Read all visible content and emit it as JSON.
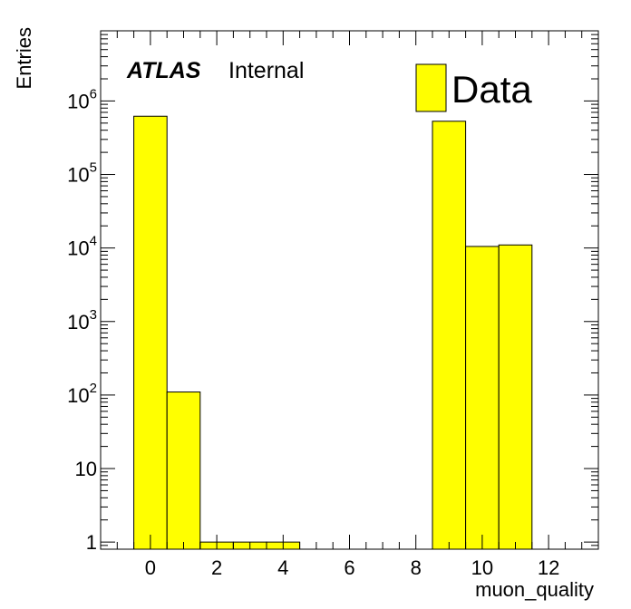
{
  "chart_data": {
    "type": "bar",
    "xlabel": "muon_quality",
    "ylabel": "Entries",
    "x_log": false,
    "y_log": true,
    "xlim": [
      -1.5,
      13.5
    ],
    "ylim": [
      0.8,
      9000000
    ],
    "bin_edges": [
      -0.5,
      0.5,
      1.5,
      2.5,
      3.5,
      4.5,
      5.5,
      6.5,
      7.5,
      8.5,
      9.5,
      10.5,
      11.5
    ],
    "series": [
      {
        "name": "Data",
        "color": "#ffff00",
        "values": [
          620000,
          110,
          1,
          1,
          1,
          0,
          0,
          0,
          0,
          530000,
          10500,
          11000
        ]
      }
    ],
    "x_ticks": [
      {
        "value": 0,
        "label": "0"
      },
      {
        "value": 2,
        "label": "2"
      },
      {
        "value": 4,
        "label": "4"
      },
      {
        "value": 6,
        "label": "6"
      },
      {
        "value": 8,
        "label": "8"
      },
      {
        "value": 10,
        "label": "10"
      },
      {
        "value": 12,
        "label": "12"
      }
    ],
    "y_ticks": [
      {
        "value": 1,
        "base": "1",
        "exp": ""
      },
      {
        "value": 10,
        "base": "10",
        "exp": ""
      },
      {
        "value": 100,
        "base": "10",
        "exp": "2"
      },
      {
        "value": 1000,
        "base": "10",
        "exp": "3"
      },
      {
        "value": 10000,
        "base": "10",
        "exp": "4"
      },
      {
        "value": 100000,
        "base": "10",
        "exp": "5"
      },
      {
        "value": 1000000,
        "base": "10",
        "exp": "6"
      }
    ],
    "grid": false,
    "legend_position": "top-right",
    "annotation": {
      "bold": "ATLAS",
      "normal": "Internal"
    }
  }
}
